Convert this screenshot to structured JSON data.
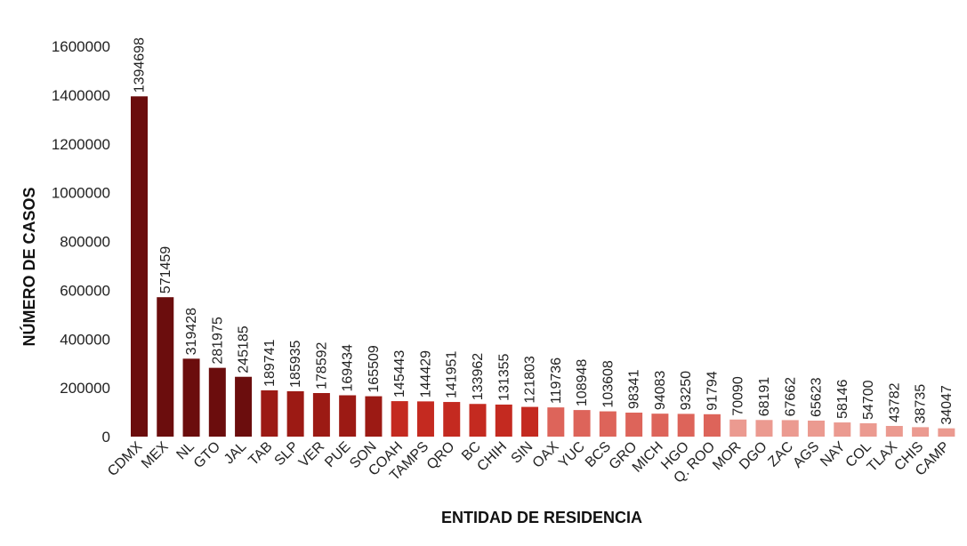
{
  "chart_data": {
    "type": "bar",
    "xlabel": "ENTIDAD DE RESIDENCIA",
    "ylabel": "NÚMERO DE CASOS",
    "ylim": [
      0,
      1600000
    ],
    "yticks": [
      0,
      200000,
      400000,
      600000,
      800000,
      1000000,
      1200000,
      1400000,
      1600000
    ],
    "grid": false,
    "legend": "none",
    "categories": [
      "CDMX",
      "MEX",
      "NL",
      "GTO",
      "JAL",
      "TAB",
      "SLP",
      "VER",
      "PUE",
      "SON",
      "COAH",
      "TAMPS",
      "QRO",
      "BC",
      "CHIH",
      "SIN",
      "OAX",
      "YUC",
      "BCS",
      "GRO",
      "MICH",
      "HGO",
      "Q. ROO",
      "MOR",
      "DGO",
      "ZAC",
      "AGS",
      "NAY",
      "COL",
      "TLAX",
      "CHIS",
      "CAMP"
    ],
    "values": [
      1394698,
      571459,
      319428,
      281975,
      245185,
      189741,
      185935,
      178592,
      169434,
      165509,
      145443,
      144429,
      141951,
      133962,
      131355,
      121803,
      119736,
      108948,
      103608,
      98341,
      94083,
      93250,
      91794,
      70090,
      68191,
      67662,
      65623,
      58146,
      54700,
      43782,
      38735,
      34047
    ],
    "data_labels": [
      "1394698",
      "571459",
      "319428",
      "281975",
      "245185",
      "189741",
      "185935",
      "178592",
      "169434",
      "165509",
      "145443",
      "144429",
      "141951",
      "133962",
      "131355",
      "121803",
      "119736",
      "108948",
      "103608",
      "98341",
      "94083",
      "93250",
      "91794",
      "70090",
      "68191",
      "67662",
      "65623",
      "58146",
      "54700",
      "43782",
      "38735",
      "34047"
    ],
    "colors": [
      "#6b0d0d",
      "#6b0d0d",
      "#6b0d0d",
      "#6b0d0d",
      "#6b0d0d",
      "#9c1a14",
      "#9c1a14",
      "#9c1a14",
      "#9c1a14",
      "#9c1a14",
      "#c42a20",
      "#c42a20",
      "#c42a20",
      "#c42a20",
      "#c42a20",
      "#c42a20",
      "#dd645a",
      "#dd645a",
      "#dd645a",
      "#dd645a",
      "#dd645a",
      "#dd645a",
      "#dd645a",
      "#eb9a90",
      "#eb9a90",
      "#eb9a90",
      "#eb9a90",
      "#eb9a90",
      "#eb9a90",
      "#eb9a90",
      "#eb9a90",
      "#eb9a90"
    ]
  }
}
